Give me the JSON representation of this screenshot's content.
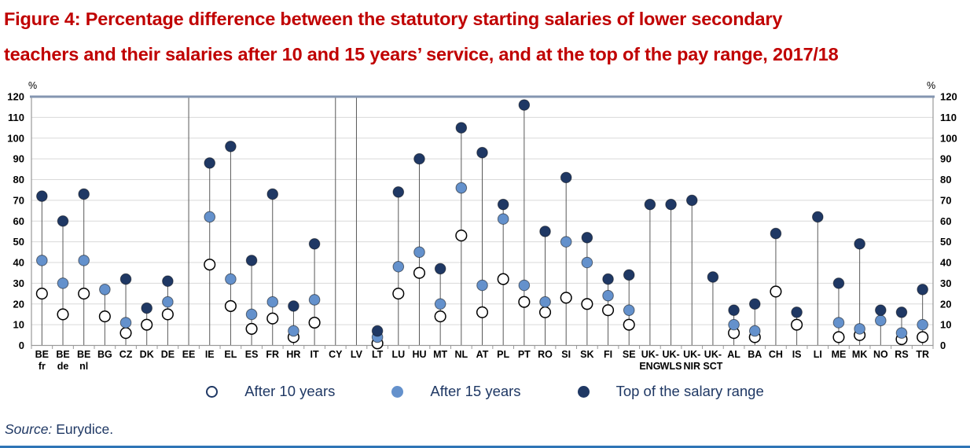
{
  "title": {
    "line1": "Figure 4: Percentage difference between the statutory starting salaries of lower secondary",
    "line2": "teachers and their salaries after 10 and 15 years’ service, and at the top of the pay range, 2017/18"
  },
  "legend": {
    "items": [
      {
        "label": "After 10 years",
        "marker": "open-circle"
      },
      {
        "label": "After 15 years",
        "marker": "light-blue-circle"
      },
      {
        "label": "Top of the salary range",
        "marker": "navy-circle"
      }
    ]
  },
  "source": {
    "label": "Source:",
    "text": "Eurydice."
  },
  "colors": {
    "title": "#C00000",
    "navy": "#1F3864",
    "light_blue": "#6491CC",
    "white_dot": "#FFFFFF",
    "dot_outline": "#000000",
    "stem": "#595959",
    "gridline": "#D9D9D9",
    "border": "#999999",
    "top_border": "#8496B0",
    "axis_text": "#000000",
    "legend_text": "#1F3864",
    "accent_rule": "#2E75B6"
  },
  "chart_data": {
    "type": "scatter",
    "subtype": "lollipop",
    "title": "Percentage difference between statutory starting salaries and salaries after 10/15 years and at top of pay range, 2017/18",
    "xlabel": "",
    "ylabel": "%",
    "ylim": [
      0,
      120
    ],
    "yticks": [
      0,
      10,
      20,
      30,
      40,
      50,
      60,
      70,
      80,
      90,
      100,
      110,
      120
    ],
    "grid": true,
    "legend_position": "bottom",
    "categories": [
      "BE fr",
      "BE de",
      "BE nl",
      "BG",
      "CZ",
      "DK",
      "DE",
      "EE",
      "IE",
      "EL",
      "ES",
      "FR",
      "HR",
      "IT",
      "CY",
      "LV",
      "LT",
      "LU",
      "HU",
      "MT",
      "NL",
      "AT",
      "PL",
      "PT",
      "RO",
      "SI",
      "SK",
      "FI",
      "SE",
      "UK-ENG",
      "UK-WLS",
      "UK-NIR",
      "UK-SCT",
      "AL",
      "BA",
      "CH",
      "IS",
      "LI",
      "ME",
      "MK",
      "NO",
      "RS",
      "TR"
    ],
    "label_lines": [
      [
        "BE",
        "fr"
      ],
      [
        "BE",
        "de"
      ],
      [
        "BE",
        "nl"
      ],
      [
        "BG"
      ],
      [
        "CZ"
      ],
      [
        "DK"
      ],
      [
        "DE"
      ],
      [
        "EE"
      ],
      [
        "IE"
      ],
      [
        "EL"
      ],
      [
        "ES"
      ],
      [
        "FR"
      ],
      [
        "HR"
      ],
      [
        "IT"
      ],
      [
        "CY"
      ],
      [
        "LV"
      ],
      [
        "LT"
      ],
      [
        "LU"
      ],
      [
        "HU"
      ],
      [
        "MT"
      ],
      [
        "NL"
      ],
      [
        "AT"
      ],
      [
        "PL"
      ],
      [
        "PT"
      ],
      [
        "RO"
      ],
      [
        "SI"
      ],
      [
        "SK"
      ],
      [
        "FI"
      ],
      [
        "SE"
      ],
      [
        "UK-",
        "ENG"
      ],
      [
        "UK-",
        "WLS"
      ],
      [
        "UK-",
        "NIR"
      ],
      [
        "UK-",
        "SCT"
      ],
      [
        "AL"
      ],
      [
        "BA"
      ],
      [
        "CH"
      ],
      [
        "IS"
      ],
      [
        "LI"
      ],
      [
        "ME"
      ],
      [
        "MK"
      ],
      [
        "NO"
      ],
      [
        "RS"
      ],
      [
        "TR"
      ]
    ],
    "no_data_categories": [
      "EE",
      "CY",
      "LV"
    ],
    "series": [
      {
        "name": "After 10 years",
        "values": [
          25,
          15,
          25,
          14,
          6,
          10,
          15,
          null,
          39,
          19,
          8,
          13,
          4,
          11,
          null,
          null,
          1,
          25,
          35,
          14,
          53,
          16,
          32,
          21,
          16,
          23,
          20,
          17,
          10,
          null,
          null,
          null,
          null,
          6,
          4,
          26,
          10,
          null,
          4,
          5,
          null,
          3,
          4
        ]
      },
      {
        "name": "After 15 years",
        "values": [
          41,
          30,
          41,
          27,
          11,
          null,
          21,
          null,
          62,
          32,
          15,
          21,
          7,
          22,
          null,
          null,
          4,
          38,
          45,
          20,
          76,
          29,
          61,
          29,
          21,
          50,
          40,
          24,
          17,
          null,
          null,
          null,
          null,
          10,
          7,
          null,
          null,
          null,
          11,
          8,
          12,
          6,
          10
        ]
      },
      {
        "name": "Top of the salary range",
        "values": [
          72,
          60,
          73,
          null,
          32,
          18,
          31,
          null,
          88,
          96,
          41,
          73,
          19,
          49,
          null,
          null,
          7,
          74,
          90,
          37,
          105,
          93,
          68,
          116,
          55,
          81,
          52,
          32,
          34,
          68,
          68,
          70,
          33,
          17,
          20,
          54,
          16,
          62,
          30,
          49,
          17,
          16,
          27
        ]
      }
    ]
  }
}
